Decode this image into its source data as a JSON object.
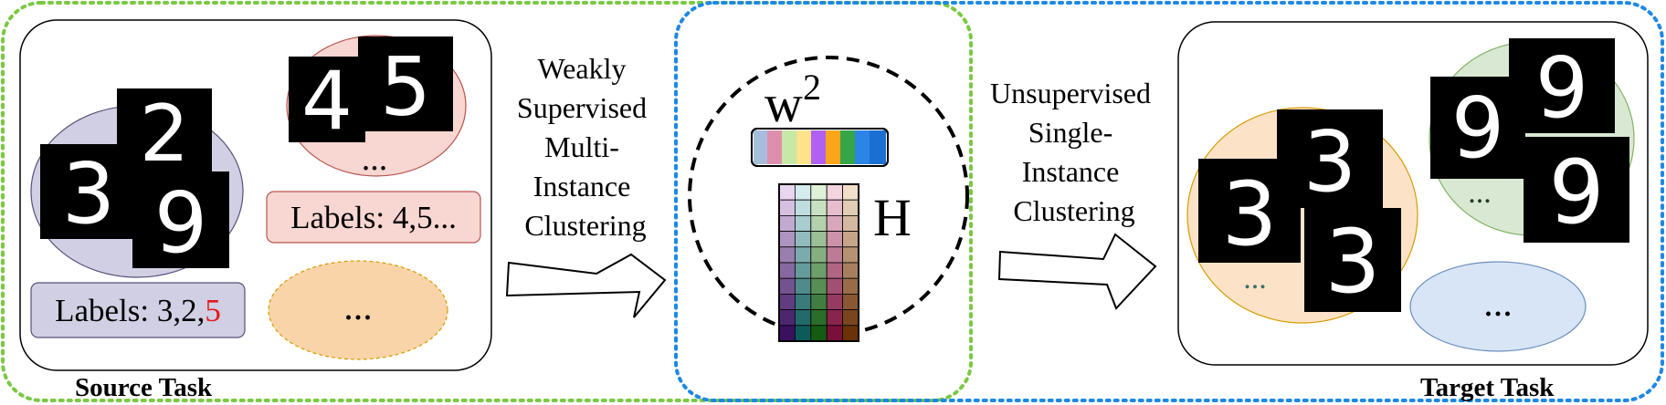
{
  "source_task": {
    "title": "Source Task",
    "bag1": {
      "digits": [
        "3",
        "2",
        "9"
      ],
      "label_prefix": "Labels: 3,2,",
      "label_highlight": "5"
    },
    "bag2": {
      "digits": [
        "4",
        "5"
      ],
      "ellipsis": "...",
      "label": "Labels: 4,5..."
    },
    "bag3": {
      "ellipsis": "..."
    }
  },
  "arrow1": {
    "lines": [
      "Weakly",
      "Supervised",
      "Multi-",
      "Instance",
      "Clustering"
    ]
  },
  "model": {
    "w_symbol": "w",
    "w_superscript": "2",
    "h_symbol": "H"
  },
  "arrow2": {
    "lines": [
      "Unsupervised",
      "Single-",
      "Instance",
      "Clustering"
    ]
  },
  "target_task": {
    "title": "Target Task",
    "cluster1": {
      "digits": [
        "3",
        "3",
        "3"
      ],
      "ellipsis": "..."
    },
    "cluster2": {
      "digits": [
        "9",
        "9",
        "9"
      ],
      "ellipsis": "..."
    },
    "cluster3": {
      "ellipsis": "..."
    }
  },
  "colors": {
    "source_border": "#7ac943",
    "target_border": "#1e88e5",
    "bag1_fill": "#d1cfe3",
    "bag2_fill": "#f8d6d1",
    "bag3_fill": "#f9d4a8",
    "cluster1_fill": "#fce3c8",
    "cluster2_fill": "#d9e8d3",
    "cluster3_fill": "#d7e5f6",
    "highlight": "#e31a1c"
  }
}
